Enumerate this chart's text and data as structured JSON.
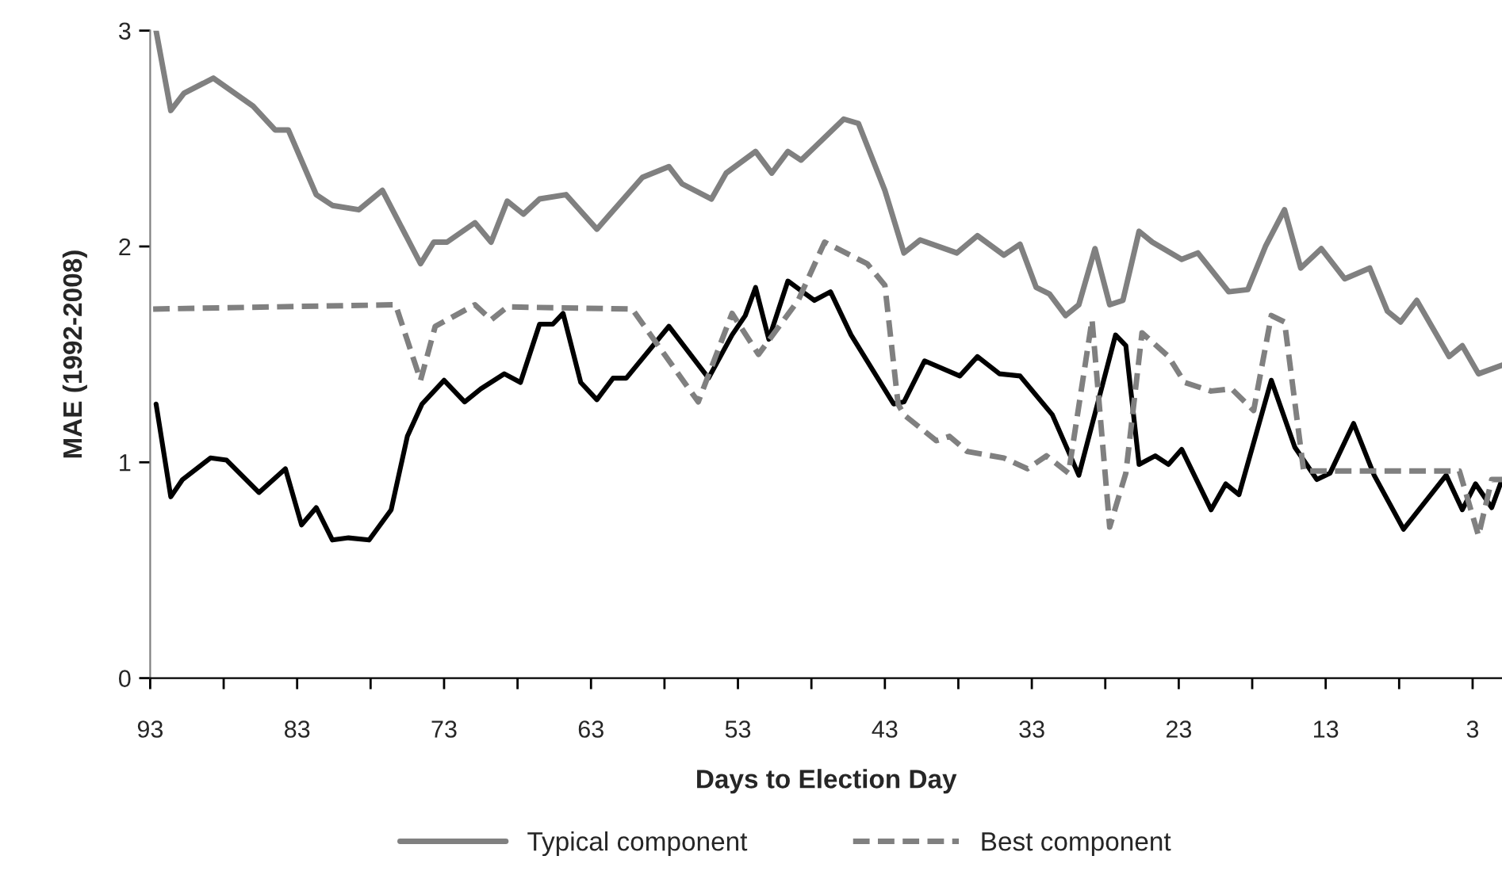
{
  "chart_data": {
    "type": "line",
    "xlabel": "Days to Election Day",
    "ylabel": "MAE (1992-2008)",
    "xlim": [
      93,
      1
    ],
    "ylim": [
      0,
      3
    ],
    "xticks": [
      93,
      {
        "value": 88,
        "label": null
      },
      83,
      {
        "value": 78,
        "label": null
      },
      73,
      {
        "value": 68,
        "label": null
      },
      63,
      {
        "value": 58,
        "label": null
      },
      53,
      {
        "value": 48,
        "label": null
      },
      43,
      {
        "value": 38,
        "label": null
      },
      33,
      {
        "value": 28,
        "label": null
      },
      23,
      {
        "value": 18,
        "label": null
      },
      13,
      {
        "value": 8,
        "label": null
      },
      3
    ],
    "yticks": [
      0,
      1,
      2,
      3
    ],
    "grid": false,
    "legend": "bottom",
    "series": [
      {
        "color": "#000000",
        "line_style": "solid",
        "x": [
          92.6,
          91.6,
          90.8,
          88.9,
          87.8,
          85.6,
          83.8,
          82.7,
          81.7,
          80.6,
          79.5,
          78.1,
          76.6,
          75.5,
          74.5,
          73.0,
          71.6,
          70.5,
          68.9,
          67.8,
          66.5,
          65.6,
          64.9,
          63.7,
          62.6,
          61.5,
          60.6,
          57.7,
          55.0,
          53.4,
          52.5,
          51.8,
          50.9,
          49.6,
          47.8,
          46.7,
          45.3,
          42.4,
          41.7,
          40.3,
          37.9,
          36.7,
          35.2,
          33.8,
          31.6,
          29.8,
          27.3,
          26.6,
          25.7,
          24.6,
          23.7,
          22.8,
          20.8,
          19.8,
          18.9,
          16.7,
          15.1,
          13.6,
          12.7,
          11.1,
          9.7,
          7.7,
          4.8,
          3.7,
          2.8,
          1.7,
          1.0
        ],
        "values": [
          1.27,
          0.84,
          0.92,
          1.02,
          1.01,
          0.86,
          0.97,
          0.71,
          0.79,
          0.64,
          0.65,
          0.64,
          0.78,
          1.12,
          1.27,
          1.38,
          1.28,
          1.34,
          1.41,
          1.37,
          1.64,
          1.64,
          1.69,
          1.37,
          1.29,
          1.39,
          1.39,
          1.63,
          1.39,
          1.59,
          1.68,
          1.81,
          1.57,
          1.84,
          1.75,
          1.79,
          1.59,
          1.27,
          1.28,
          1.47,
          1.4,
          1.49,
          1.41,
          1.4,
          1.22,
          0.94,
          1.59,
          1.54,
          0.99,
          1.03,
          0.99,
          1.06,
          0.78,
          0.9,
          0.85,
          1.38,
          1.07,
          0.92,
          0.95,
          1.18,
          0.94,
          0.69,
          0.94,
          0.78,
          0.9,
          0.79,
          0.92
        ]
      },
      {
        "name": "Typical component",
        "color": "#808080",
        "line_style": "solid",
        "x": [
          92.6,
          91.6,
          90.7,
          88.7,
          86.0,
          84.5,
          83.6,
          81.7,
          80.6,
          78.8,
          77.2,
          74.6,
          73.7,
          72.8,
          70.9,
          69.8,
          68.7,
          67.6,
          66.5,
          64.7,
          62.6,
          59.5,
          57.7,
          56.8,
          54.8,
          53.8,
          51.8,
          50.7,
          49.6,
          48.7,
          45.8,
          44.8,
          43.0,
          41.7,
          40.6,
          38.1,
          36.7,
          34.9,
          33.8,
          32.7,
          31.8,
          30.7,
          29.8,
          28.7,
          27.7,
          26.8,
          25.7,
          24.8,
          22.8,
          21.7,
          19.6,
          18.3,
          17.1,
          15.8,
          14.7,
          13.3,
          11.7,
          10.0,
          8.8,
          7.9,
          6.8,
          4.6,
          3.7,
          2.6,
          1.0
        ],
        "values": [
          3.0,
          2.63,
          2.71,
          2.78,
          2.65,
          2.54,
          2.54,
          2.24,
          2.19,
          2.17,
          2.26,
          1.92,
          2.02,
          2.02,
          2.11,
          2.02,
          2.21,
          2.15,
          2.22,
          2.24,
          2.08,
          2.32,
          2.37,
          2.29,
          2.22,
          2.34,
          2.44,
          2.34,
          2.44,
          2.4,
          2.59,
          2.57,
          2.26,
          1.97,
          2.03,
          1.97,
          2.05,
          1.96,
          2.01,
          1.81,
          1.78,
          1.68,
          1.73,
          1.99,
          1.73,
          1.75,
          2.07,
          2.02,
          1.94,
          1.97,
          1.79,
          1.8,
          2.0,
          2.17,
          1.9,
          1.99,
          1.85,
          1.9,
          1.7,
          1.65,
          1.75,
          1.49,
          1.54,
          1.41,
          1.45
        ]
      },
      {
        "name": "Best component",
        "color": "#808080",
        "line_style": "dashed",
        "x": [
          92.8,
          76.3,
          74.6,
          73.6,
          70.9,
          69.8,
          68.7,
          60.2,
          55.7,
          53.4,
          51.6,
          48.9,
          47.1,
          44.2,
          43.0,
          42.1,
          41.7,
          39.5,
          38.6,
          37.4,
          34.9,
          33.3,
          32.0,
          30.5,
          28.9,
          27.7,
          26.6,
          25.5,
          23.7,
          22.6,
          20.8,
          19.4,
          17.9,
          16.7,
          15.8,
          14.5,
          3.9,
          2.6,
          1.7,
          1.0
        ],
        "values": [
          1.71,
          1.73,
          1.38,
          1.63,
          1.73,
          1.66,
          1.72,
          1.71,
          1.28,
          1.69,
          1.5,
          1.75,
          2.02,
          1.92,
          1.82,
          1.27,
          1.22,
          1.1,
          1.12,
          1.05,
          1.02,
          0.97,
          1.03,
          0.95,
          1.66,
          0.7,
          0.95,
          1.6,
          1.49,
          1.37,
          1.33,
          1.34,
          1.24,
          1.68,
          1.65,
          0.96,
          0.96,
          0.66,
          0.92,
          0.92
        ]
      }
    ]
  }
}
